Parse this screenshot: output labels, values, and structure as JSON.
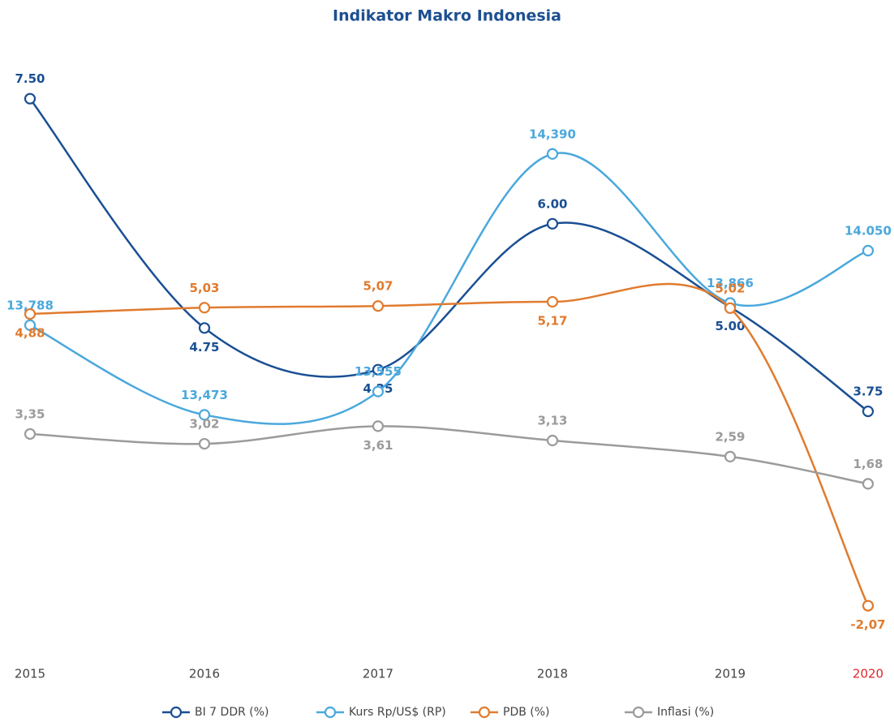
{
  "chart_data": {
    "type": "line",
    "title": "Indikator Makro Indonesia",
    "categories": [
      "2015",
      "2016",
      "2017",
      "2018",
      "2019",
      "2020"
    ],
    "highlight_category": 5,
    "highlight_color": "#e0262e",
    "series": [
      {
        "name": "BI 7 DDR (%)",
        "color": "#1a4f93",
        "values": [
          7.5,
          4.75,
          4.25,
          6.0,
          5.0,
          3.75
        ],
        "value_labels": [
          "7.50",
          "4.75",
          "4.25",
          "6.00",
          "5.00",
          "3.75"
        ],
        "ylim": [
          0.9,
          8.1
        ]
      },
      {
        "name": "Kurs Rp/US$ (RP)",
        "color": "#4aa8dc",
        "values": [
          13788,
          13473,
          13555,
          14390,
          13866,
          14050
        ],
        "value_labels": [
          "13,788",
          "13,473",
          "13,555",
          "14,390",
          "13,866",
          "14.050"
        ],
        "ylim": [
          12650,
          14760
        ]
      },
      {
        "name": "PDB (%)",
        "color": "#e07b2e",
        "values": [
          4.88,
          5.03,
          5.07,
          5.17,
          5.02,
          -2.07
        ],
        "value_labels": [
          "4,88",
          "5,03",
          "5,07",
          "5,17",
          "5,02",
          "-2,07"
        ],
        "ylim": [
          -3.1,
          11.2
        ]
      },
      {
        "name": "Inflasi (%)",
        "color": "#9b9b9b",
        "values": [
          3.35,
          3.02,
          3.61,
          3.13,
          2.59,
          1.68
        ],
        "value_labels": [
          "3,35",
          "3,02",
          "3,61",
          "3,13",
          "2,59",
          "1,68"
        ],
        "ylim": [
          -3.85,
          16.25
        ]
      }
    ]
  }
}
